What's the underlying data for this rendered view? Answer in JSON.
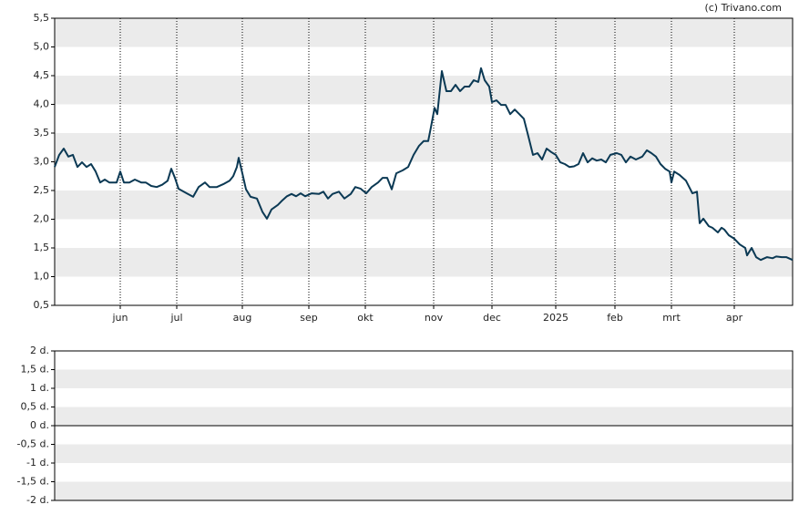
{
  "source": "(c) Trivano.com",
  "chart_data": [
    {
      "type": "line",
      "xlim": [
        0,
        810
      ],
      "ylim": [
        0.5,
        5.5
      ],
      "xticks": [
        {
          "value": 72,
          "label": "jun"
        },
        {
          "value": 134,
          "label": "jul"
        },
        {
          "value": 206,
          "label": "aug"
        },
        {
          "value": 279,
          "label": "sep"
        },
        {
          "value": 341,
          "label": "okt"
        },
        {
          "value": 416,
          "label": "nov"
        },
        {
          "value": 480,
          "label": "dec"
        },
        {
          "value": 550,
          "label": "2025"
        },
        {
          "value": 615,
          "label": "feb"
        },
        {
          "value": 677,
          "label": "mrt"
        },
        {
          "value": 746,
          "label": "apr"
        }
      ],
      "yticks": [
        {
          "value": 0.5,
          "label": "0,5"
        },
        {
          "value": 1,
          "label": "1,0"
        },
        {
          "value": 1.5,
          "label": "1,5"
        },
        {
          "value": 2,
          "label": "2,0"
        },
        {
          "value": 2.5,
          "label": "2,5"
        },
        {
          "value": 3,
          "label": "3,0"
        },
        {
          "value": 3.5,
          "label": "3,5"
        },
        {
          "value": 4,
          "label": "4,0"
        },
        {
          "value": 4.5,
          "label": "4,5"
        },
        {
          "value": 5,
          "label": "5,0"
        },
        {
          "value": 5.5,
          "label": "5,5"
        }
      ],
      "x": [
        0,
        5,
        10,
        15,
        20,
        25,
        30,
        35,
        40,
        45,
        50,
        55,
        60,
        68,
        72,
        76,
        82,
        88,
        95,
        100,
        106,
        112,
        118,
        124,
        128,
        132,
        136,
        145,
        152,
        158,
        165,
        170,
        178,
        185,
        192,
        196,
        200,
        202,
        206,
        210,
        215,
        222,
        228,
        233,
        238,
        245,
        250,
        255,
        260,
        265,
        270,
        275,
        282,
        290,
        295,
        300,
        305,
        312,
        318,
        325,
        330,
        336,
        342,
        348,
        355,
        360,
        365,
        370,
        375,
        382,
        388,
        394,
        400,
        405,
        410,
        413,
        417,
        420,
        425,
        430,
        435,
        440,
        445,
        450,
        455,
        460,
        465,
        468,
        472,
        477,
        480,
        485,
        490,
        495,
        500,
        505,
        510,
        515,
        520,
        525,
        530,
        535,
        540,
        545,
        550,
        555,
        560,
        565,
        570,
        575,
        580,
        585,
        590,
        595,
        600,
        605,
        610,
        617,
        622,
        627,
        632,
        638,
        645,
        650,
        655,
        660,
        665,
        670,
        675,
        677,
        680,
        686,
        693,
        700,
        705,
        708,
        712,
        718,
        722,
        728,
        732,
        735,
        740,
        746,
        752,
        758,
        760,
        765,
        770,
        775,
        782,
        788,
        792,
        798,
        803,
        810
      ],
      "series": [
        {
          "color": "#0b3954",
          "values": [
            2.91,
            3.12,
            3.23,
            3.09,
            3.12,
            2.91,
            2.99,
            2.91,
            2.96,
            2.83,
            2.64,
            2.69,
            2.64,
            2.64,
            2.83,
            2.64,
            2.64,
            2.69,
            2.64,
            2.64,
            2.58,
            2.56,
            2.6,
            2.67,
            2.88,
            2.72,
            2.53,
            2.45,
            2.39,
            2.56,
            2.64,
            2.56,
            2.56,
            2.61,
            2.67,
            2.75,
            2.91,
            3.07,
            2.8,
            2.52,
            2.39,
            2.36,
            2.13,
            2.01,
            2.17,
            2.25,
            2.33,
            2.4,
            2.44,
            2.4,
            2.45,
            2.4,
            2.45,
            2.44,
            2.48,
            2.36,
            2.44,
            2.48,
            2.36,
            2.44,
            2.56,
            2.53,
            2.45,
            2.56,
            2.64,
            2.72,
            2.72,
            2.52,
            2.8,
            2.85,
            2.91,
            3.12,
            3.28,
            3.36,
            3.36,
            3.6,
            3.94,
            3.83,
            4.58,
            4.23,
            4.23,
            4.34,
            4.23,
            4.31,
            4.31,
            4.42,
            4.39,
            4.63,
            4.42,
            4.31,
            4.04,
            4.07,
            3.99,
            3.99,
            3.83,
            3.91,
            3.83,
            3.75,
            3.44,
            3.12,
            3.15,
            3.04,
            3.23,
            3.17,
            3.12,
            2.99,
            2.96,
            2.91,
            2.92,
            2.96,
            3.15,
            2.99,
            3.06,
            3.02,
            3.04,
            2.99,
            3.12,
            3.15,
            3.12,
            2.99,
            3.09,
            3.04,
            3.09,
            3.2,
            3.15,
            3.09,
            2.96,
            2.88,
            2.83,
            2.64,
            2.83,
            2.77,
            2.67,
            2.45,
            2.48,
            1.93,
            2.01,
            1.88,
            1.85,
            1.77,
            1.85,
            1.82,
            1.72,
            1.66,
            1.56,
            1.5,
            1.37,
            1.5,
            1.34,
            1.29,
            1.34,
            1.32,
            1.35,
            1.34,
            1.34,
            1.29
          ]
        }
      ]
    },
    {
      "type": "line",
      "ylim": [
        -2,
        2
      ],
      "yticks": [
        {
          "value": -2,
          "label": "-2 d."
        },
        {
          "value": -1.5,
          "label": "-1,5 d."
        },
        {
          "value": -1,
          "label": "-1 d."
        },
        {
          "value": -0.5,
          "label": "-0,5 d."
        },
        {
          "value": 0,
          "label": "0 d."
        },
        {
          "value": 0.5,
          "label": "0,5 d."
        },
        {
          "value": 1,
          "label": "1 d."
        },
        {
          "value": 1.5,
          "label": "1,5 d."
        },
        {
          "value": 2,
          "label": "2 d."
        }
      ],
      "series": []
    }
  ]
}
